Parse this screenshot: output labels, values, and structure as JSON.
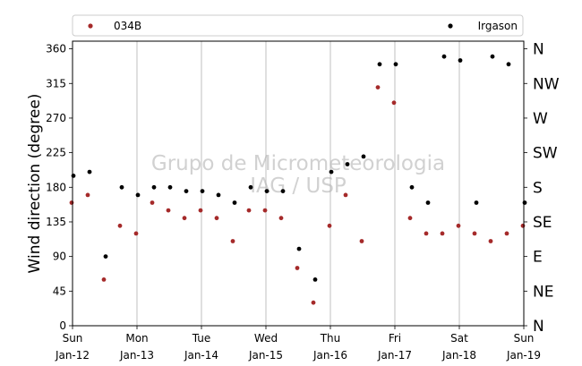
{
  "chart_data": {
    "type": "scatter",
    "title": "",
    "xlabel": "",
    "ylabel": "Wind direction (degree)",
    "ylim": [
      0,
      370
    ],
    "xlim": [
      "2020-01-12",
      "2020-01-19"
    ],
    "y_ticks": [
      0,
      45,
      90,
      135,
      180,
      225,
      270,
      315,
      360
    ],
    "x_ticks": [
      {
        "day": "Sun",
        "date": "Jan-12"
      },
      {
        "day": "Mon",
        "date": "Jan-13"
      },
      {
        "day": "Tue",
        "date": "Jan-14"
      },
      {
        "day": "Wed",
        "date": "Jan-15"
      },
      {
        "day": "Thu",
        "date": "Jan-16"
      },
      {
        "day": "Fri",
        "date": "Jan-17"
      },
      {
        "day": "Sat",
        "date": "Jan-18"
      },
      {
        "day": "Sun",
        "date": "Jan-19"
      }
    ],
    "direction_labels": [
      {
        "value": 0,
        "label": "N"
      },
      {
        "value": 45,
        "label": "NE"
      },
      {
        "value": 90,
        "label": "E"
      },
      {
        "value": 135,
        "label": "SE"
      },
      {
        "value": 180,
        "label": "S"
      },
      {
        "value": 225,
        "label": "SW"
      },
      {
        "value": 270,
        "label": "W"
      },
      {
        "value": 315,
        "label": "NW"
      },
      {
        "value": 360,
        "label": "N"
      }
    ],
    "grid": "vertical",
    "legend_placement": "top, above plot",
    "series": [
      {
        "name": "034B",
        "color": "#a52a2a",
        "x": [
          "2020-01-12 00:00",
          "2020-01-12 06:00",
          "2020-01-12 12:00",
          "2020-01-12 18:00",
          "2020-01-13 00:00",
          "2020-01-13 06:00",
          "2020-01-13 12:00",
          "2020-01-13 18:00",
          "2020-01-14 00:00",
          "2020-01-14 06:00",
          "2020-01-14 12:00",
          "2020-01-14 18:00",
          "2020-01-15 00:00",
          "2020-01-15 06:00",
          "2020-01-15 12:00",
          "2020-01-15 18:00",
          "2020-01-16 00:00",
          "2020-01-16 06:00",
          "2020-01-16 12:00",
          "2020-01-16 18:00",
          "2020-01-17 00:00",
          "2020-01-17 06:00",
          "2020-01-17 12:00",
          "2020-01-17 18:00",
          "2020-01-18 00:00",
          "2020-01-18 06:00",
          "2020-01-18 12:00",
          "2020-01-18 18:00",
          "2020-01-19 00:00"
        ],
        "y": [
          160,
          170,
          60,
          130,
          120,
          160,
          150,
          140,
          150,
          140,
          110,
          150,
          150,
          140,
          75,
          30,
          130,
          170,
          110,
          310,
          290,
          140,
          120,
          120,
          130,
          120,
          110,
          120,
          130
        ]
      },
      {
        "name": "Irgason",
        "color": "#000000",
        "x": [
          "2020-01-12 00:00",
          "2020-01-12 06:00",
          "2020-01-12 12:00",
          "2020-01-12 18:00",
          "2020-01-13 00:00",
          "2020-01-13 06:00",
          "2020-01-13 12:00",
          "2020-01-13 18:00",
          "2020-01-14 00:00",
          "2020-01-14 06:00",
          "2020-01-14 12:00",
          "2020-01-14 18:00",
          "2020-01-15 00:00",
          "2020-01-15 06:00",
          "2020-01-15 12:00",
          "2020-01-15 18:00",
          "2020-01-16 00:00",
          "2020-01-16 06:00",
          "2020-01-16 12:00",
          "2020-01-16 18:00",
          "2020-01-17 00:00",
          "2020-01-17 06:00",
          "2020-01-17 12:00",
          "2020-01-17 18:00",
          "2020-01-18 00:00",
          "2020-01-18 06:00",
          "2020-01-18 12:00",
          "2020-01-18 18:00",
          "2020-01-19 00:00"
        ],
        "y": [
          195,
          200,
          90,
          180,
          170,
          180,
          180,
          175,
          175,
          170,
          160,
          180,
          175,
          175,
          100,
          60,
          200,
          210,
          220,
          340,
          340,
          180,
          160,
          350,
          345,
          160,
          350,
          340,
          160
        ]
      }
    ]
  },
  "watermark": {
    "line1": "Grupo de Micrometeorologia",
    "line2": "IAG / USP"
  }
}
